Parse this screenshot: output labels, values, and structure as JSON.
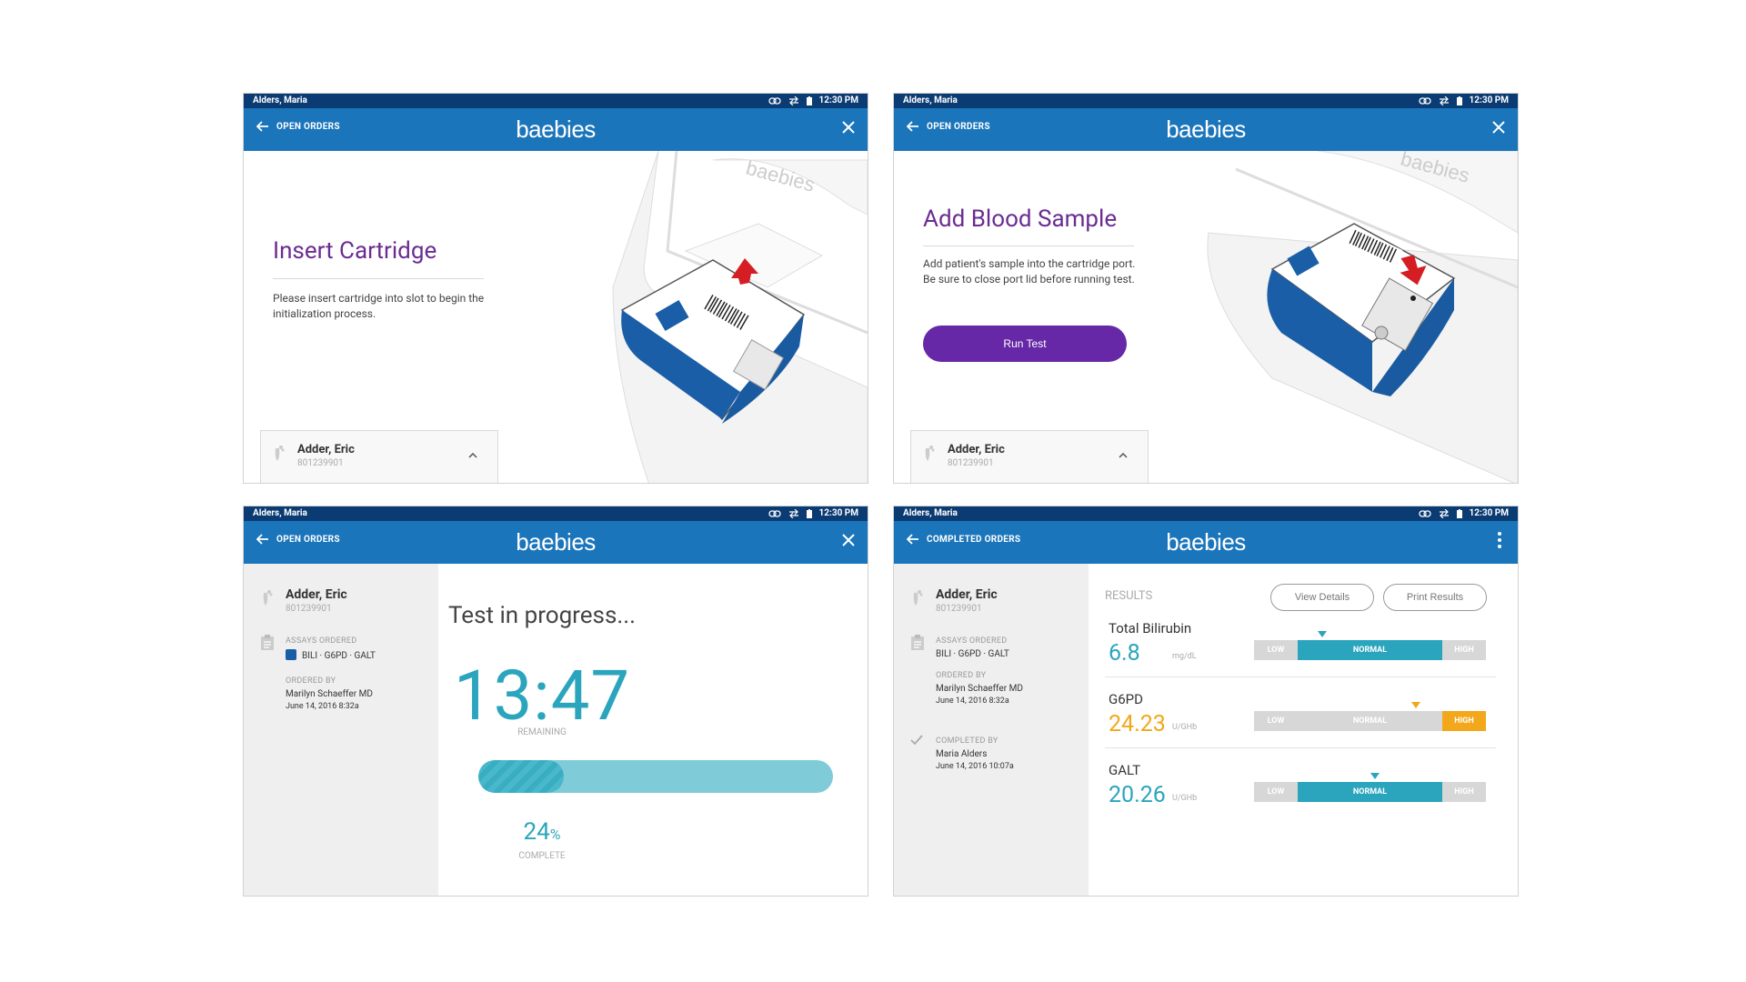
{
  "status": {
    "user": "Alders, Maria",
    "time": "12:30 PM"
  },
  "brand": "baebies",
  "nav": {
    "open_orders": "OPEN ORDERS",
    "completed_orders": "COMPLETED ORDERS"
  },
  "patient": {
    "name": "Adder, Eric",
    "id": "801239901"
  },
  "screen1": {
    "title": "Insert Cartridge",
    "body": "Please insert cartridge into slot to begin the initialization process."
  },
  "screen2": {
    "title": "Add Blood Sample",
    "body": "Add patient's sample into the cartridge port. Be sure to close port lid before running test.",
    "button": "Run Test"
  },
  "screen3": {
    "title": "Test in progress...",
    "timer": "13:47",
    "timer_label": "REMAINING",
    "percent": "24",
    "percent_unit": "%",
    "percent_value": 0.24,
    "percent_label": "COMPLETE",
    "assays_label": "ASSAYS ORDERED",
    "assays": "BILI · G6PD · GALT",
    "ordered_by_label": "ORDERED BY",
    "ordered_by": "Marilyn Schaeffer MD",
    "ordered_date": "June 14, 2016  8:32a"
  },
  "screen4": {
    "assays_label": "ASSAYS ORDERED",
    "assays": "BILI · G6PD · GALT",
    "ordered_by_label": "ORDERED BY",
    "ordered_by": "Marilyn Schaeffer MD",
    "ordered_date": "June 14, 2016  8:32a",
    "completed_by_label": "COMPLETED BY",
    "completed_by": "Maria Alders",
    "completed_date": "June 14, 2016  10:07a",
    "results_label": "RESULTS",
    "view_details": "View Details",
    "print_results": "Print Results",
    "scale": {
      "low": "LOW",
      "normal": "NORMAL",
      "high": "HIGH"
    },
    "results": [
      {
        "name": "Total Bilirubin",
        "value": "6.8",
        "unit": "mg/dL",
        "status": "normal",
        "color": "#2aa5bd"
      },
      {
        "name": "G6PD",
        "value": "24.23",
        "unit": "U/GHb",
        "status": "high",
        "color": "#f3a71b"
      },
      {
        "name": "GALT",
        "value": "20.26",
        "unit": "U/GHb",
        "status": "normal",
        "color": "#2aa5bd"
      }
    ]
  },
  "colors": {
    "appbar": "#1b75bb",
    "statusbar": "#0b3b73",
    "purple": "#6628a6",
    "teal": "#2aa5bd",
    "orange": "#f3a71b"
  }
}
